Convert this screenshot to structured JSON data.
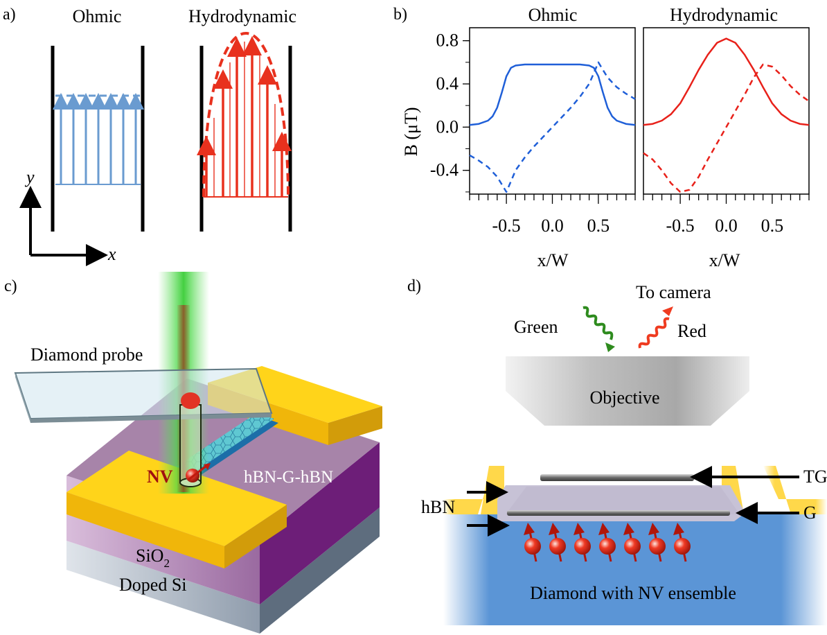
{
  "panel_a": {
    "label": "a)",
    "ohmic_title": "Ohmic",
    "hydro_title": "Hydrodynamic",
    "axis_y": "y",
    "axis_x": "x",
    "ohmic_color": "#6a9bd0",
    "hydro_color": "#e8311e"
  },
  "panel_b": {
    "label": "b)",
    "left_title": "Ohmic",
    "right_title": "Hydrodynamic",
    "ylabel": "B (μT)",
    "xlabel": "x/W",
    "blue": "#1f5fd8",
    "red": "#e8211a"
  },
  "chart_data": [
    {
      "type": "line",
      "title": "Ohmic",
      "xlabel": "x/W",
      "ylabel": "B (μT)",
      "xlim": [
        -0.9,
        0.9
      ],
      "ylim": [
        -0.62,
        0.92
      ],
      "yticks": [
        -0.4,
        0.0,
        0.4,
        0.8
      ],
      "xticks": [
        -0.5,
        0.0,
        0.5
      ],
      "series": [
        {
          "style": "solid",
          "color": "#1f5fd8",
          "x": [
            -0.9,
            -0.8,
            -0.7,
            -0.65,
            -0.6,
            -0.55,
            -0.5,
            -0.45,
            -0.4,
            -0.3,
            -0.2,
            -0.1,
            0.0,
            0.1,
            0.2,
            0.3,
            0.4,
            0.45,
            0.5,
            0.55,
            0.6,
            0.65,
            0.7,
            0.8,
            0.9
          ],
          "y": [
            0.02,
            0.03,
            0.06,
            0.1,
            0.18,
            0.32,
            0.47,
            0.55,
            0.57,
            0.58,
            0.58,
            0.58,
            0.58,
            0.58,
            0.58,
            0.58,
            0.57,
            0.55,
            0.47,
            0.32,
            0.18,
            0.1,
            0.06,
            0.03,
            0.02
          ]
        },
        {
          "style": "dashed",
          "color": "#1f5fd8",
          "x": [
            -0.9,
            -0.8,
            -0.7,
            -0.6,
            -0.55,
            -0.5,
            -0.45,
            -0.4,
            -0.3,
            -0.2,
            -0.1,
            0.0,
            0.1,
            0.2,
            0.3,
            0.4,
            0.45,
            0.5,
            0.55,
            0.6,
            0.7,
            0.8,
            0.9
          ],
          "y": [
            -0.26,
            -0.31,
            -0.37,
            -0.46,
            -0.53,
            -0.6,
            -0.5,
            -0.4,
            -0.28,
            -0.18,
            -0.09,
            0.0,
            0.09,
            0.18,
            0.28,
            0.4,
            0.5,
            0.6,
            0.53,
            0.46,
            0.37,
            0.31,
            0.26
          ]
        }
      ]
    },
    {
      "type": "line",
      "title": "Hydrodynamic",
      "xlabel": "x/W",
      "ylabel": "",
      "xlim": [
        -0.9,
        0.9
      ],
      "ylim": [
        -0.62,
        0.92
      ],
      "xticks": [
        -0.5,
        0.0,
        0.5
      ],
      "series": [
        {
          "style": "solid",
          "color": "#e8211a",
          "x": [
            -0.9,
            -0.8,
            -0.7,
            -0.6,
            -0.5,
            -0.4,
            -0.3,
            -0.2,
            -0.1,
            0.0,
            0.1,
            0.2,
            0.3,
            0.4,
            0.5,
            0.6,
            0.7,
            0.8,
            0.9
          ],
          "y": [
            0.02,
            0.03,
            0.06,
            0.12,
            0.22,
            0.37,
            0.53,
            0.67,
            0.78,
            0.82,
            0.78,
            0.67,
            0.53,
            0.37,
            0.22,
            0.12,
            0.06,
            0.03,
            0.02
          ]
        },
        {
          "style": "dashed",
          "color": "#e8211a",
          "x": [
            -0.9,
            -0.8,
            -0.7,
            -0.6,
            -0.5,
            -0.4,
            -0.3,
            -0.2,
            -0.1,
            0.0,
            0.1,
            0.2,
            0.3,
            0.4,
            0.5,
            0.6,
            0.7,
            0.8,
            0.9
          ],
          "y": [
            -0.24,
            -0.3,
            -0.4,
            -0.52,
            -0.6,
            -0.58,
            -0.46,
            -0.3,
            -0.15,
            0.0,
            0.15,
            0.3,
            0.46,
            0.58,
            0.56,
            0.48,
            0.38,
            0.3,
            0.24
          ]
        }
      ]
    }
  ],
  "panel_c": {
    "label": "c)",
    "probe": "Diamond probe",
    "nv": "NV",
    "heterostructure": "hBN-G-hBN",
    "oxide_main": "SiO",
    "oxide_sub": "2",
    "substrate": "Doped Si"
  },
  "panel_d": {
    "label": "d)",
    "to_camera": "To camera",
    "green": "Green",
    "red": "Red",
    "objective": "Objective",
    "tg": "TG",
    "g": "G",
    "hbn": "hBN",
    "diamond": "Diamond with NV ensemble"
  }
}
